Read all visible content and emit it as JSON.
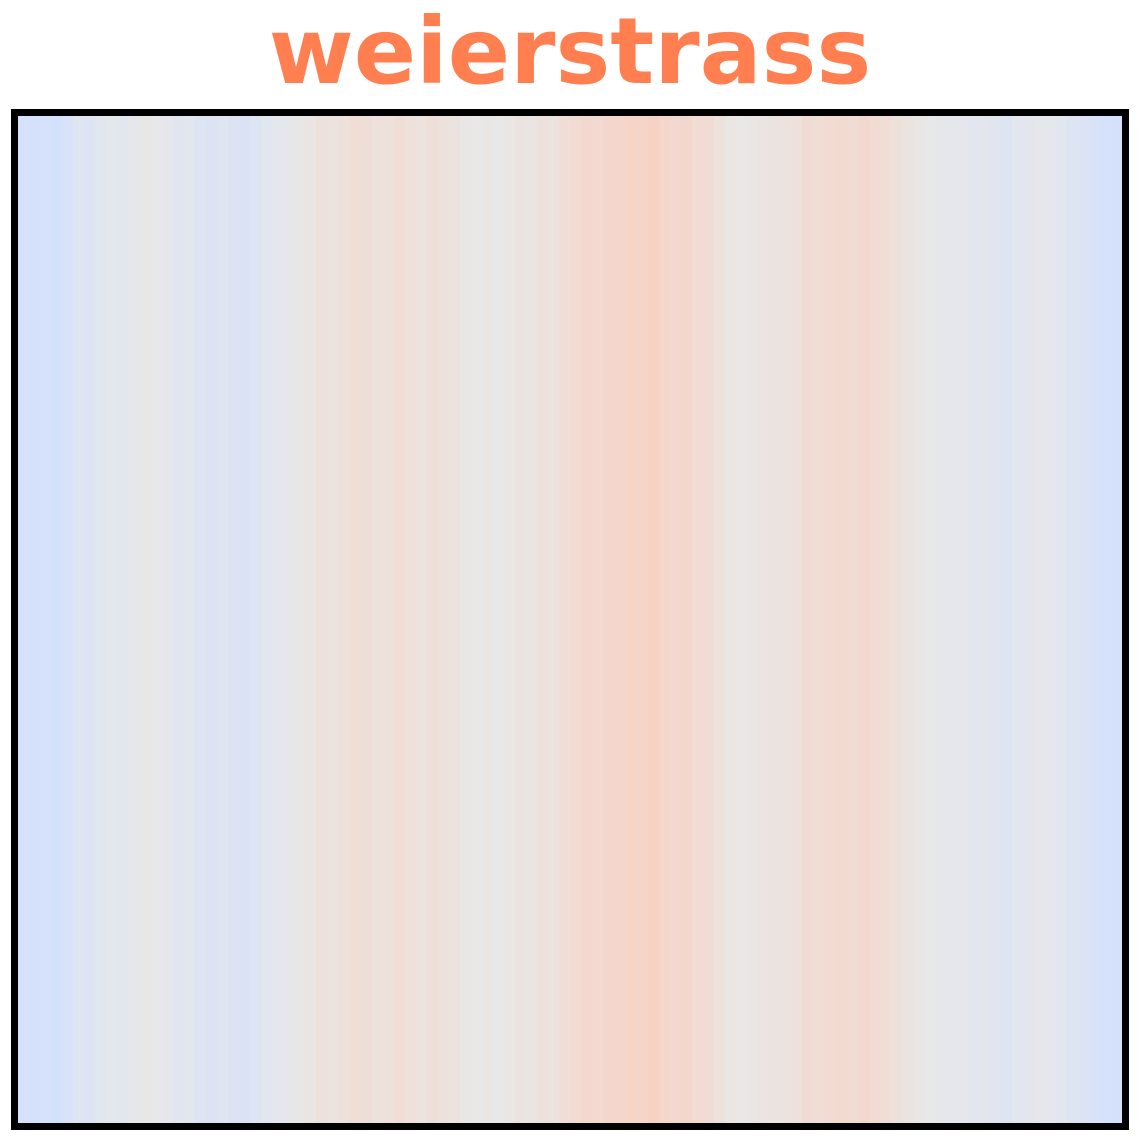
{
  "title": {
    "text": "weierstrass",
    "color": "#ff7f50"
  },
  "frame": {
    "border_color": "#000000"
  },
  "colormap": {
    "low": "#d4e1fc",
    "mid": "#e8e8e8",
    "high": "#f8d0c0"
  },
  "stripes": {
    "values": [
      -0.92,
      -0.95,
      -0.9,
      -0.98,
      -0.8,
      -0.45,
      -0.55,
      -0.3,
      -0.2,
      -0.35,
      -0.1,
      0.05,
      -0.05,
      -0.15,
      -0.4,
      -0.3,
      -0.55,
      -0.65,
      -0.45,
      -0.6,
      -0.7,
      -0.55,
      -0.35,
      -0.2,
      -0.1,
      0.05,
      0.15,
      0.3,
      0.25,
      0.35,
      0.45,
      0.4,
      0.3,
      0.35,
      0.45,
      0.35,
      0.25,
      0.4,
      0.3,
      0.2,
      0.05,
      0.0,
      0.05,
      -0.05,
      0.1,
      0.2,
      0.15,
      0.3,
      0.25,
      0.45,
      0.55,
      0.65,
      0.6,
      0.7,
      0.75,
      0.85,
      0.8,
      0.9,
      0.75,
      0.65,
      0.7,
      0.55,
      0.5,
      0.3,
      0.1,
      0.0,
      0.1,
      0.15,
      0.2,
      0.25,
      0.35,
      0.5,
      0.45,
      0.55,
      0.6,
      0.5,
      0.65,
      0.55,
      0.45,
      0.3,
      0.2,
      0.1,
      0.0,
      -0.1,
      -0.2,
      -0.15,
      -0.3,
      -0.25,
      -0.4,
      -0.5,
      -0.35,
      -0.25,
      -0.1,
      -0.2,
      -0.35,
      -0.5,
      -0.65,
      -0.8,
      -0.9,
      -0.95
    ]
  }
}
